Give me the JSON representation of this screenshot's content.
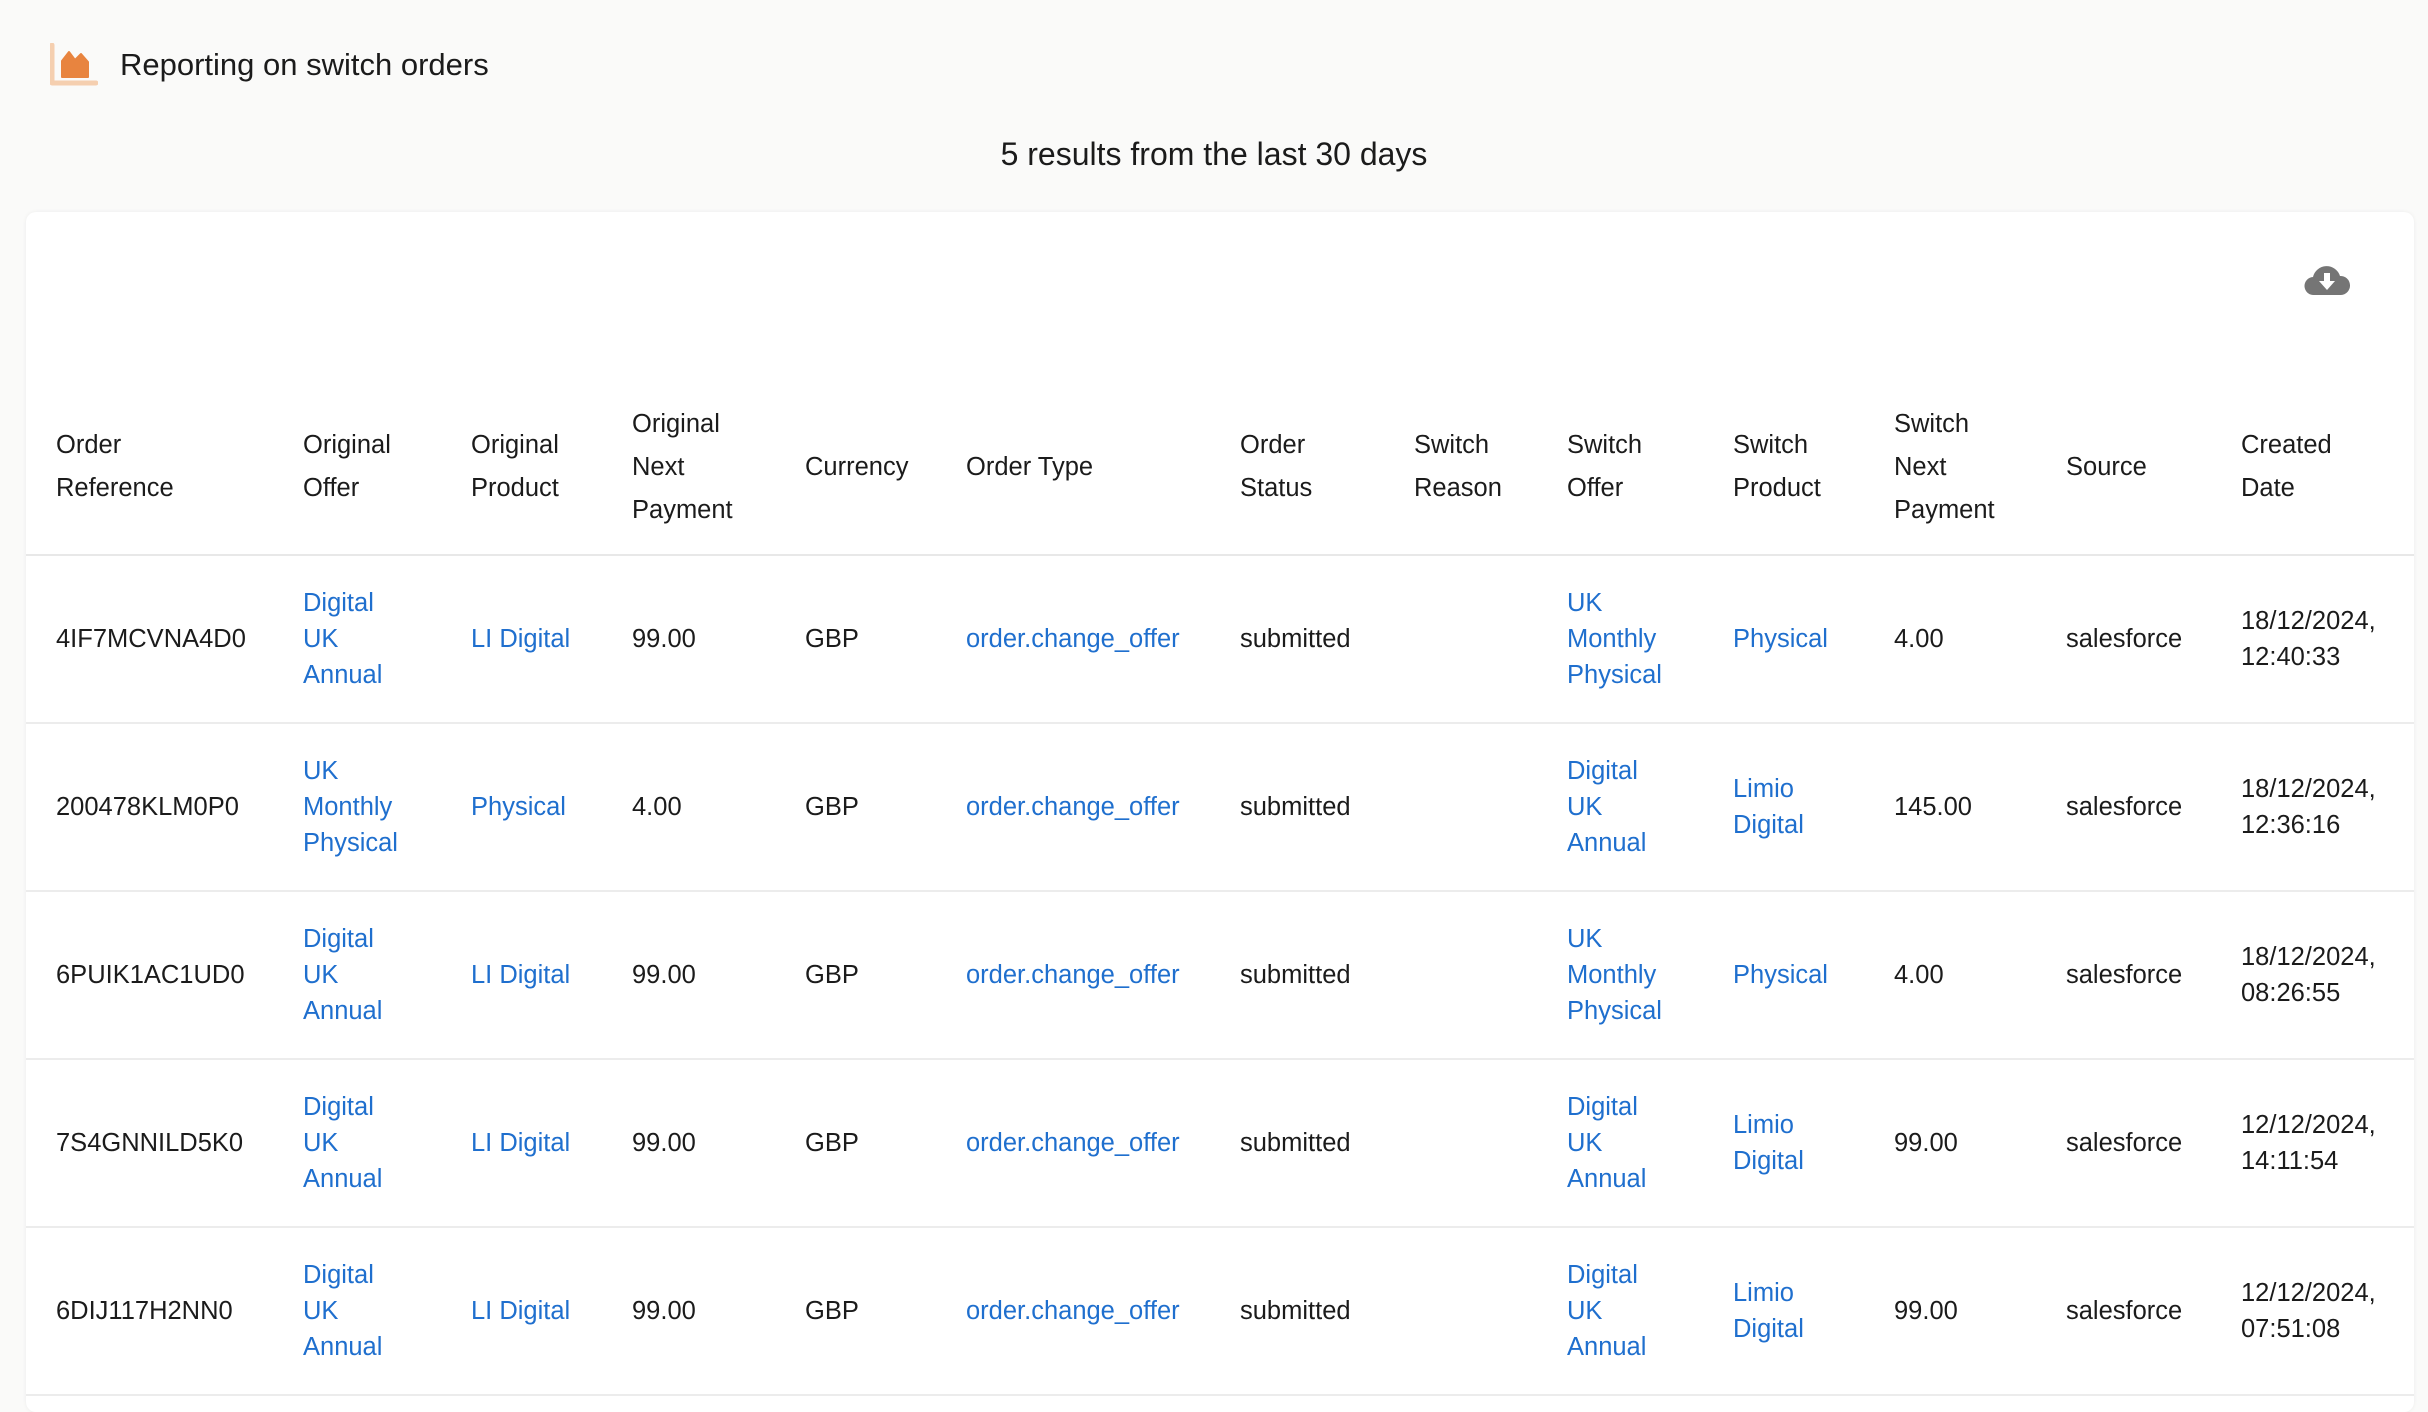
{
  "header": {
    "title": "Reporting on switch orders",
    "logo_icon": "area-chart-icon",
    "logo_color": "#e8843f"
  },
  "summary": "5 results from the last 30 days",
  "toolbar": {
    "download_icon": "cloud-download-icon"
  },
  "colors": {
    "link": "#1f6fce",
    "background": "#fafaf9"
  },
  "table": {
    "columns": [
      "Order Reference",
      "Original Offer",
      "Original Product",
      "Original Next Payment",
      "Currency",
      "Order Type",
      "Order Status",
      "Switch Reason",
      "Switch Offer",
      "Switch Product",
      "Switch Next Payment",
      "Source",
      "Created Date"
    ],
    "rows": [
      [
        "4IF7MCVNA4D0",
        "Digital UK Annual",
        "LI Digital",
        "99.00",
        "GBP",
        "order.change_offer",
        "submitted",
        "",
        "UK Monthly Physical",
        "Physical",
        "4.00",
        "salesforce",
        "18/12/2024, 12:40:33"
      ],
      [
        "200478KLM0P0",
        "UK Monthly Physical",
        "Physical",
        "4.00",
        "GBP",
        "order.change_offer",
        "submitted",
        "",
        "Digital UK Annual",
        "Limio Digital",
        "145.00",
        "salesforce",
        "18/12/2024, 12:36:16"
      ],
      [
        "6PUIK1AC1UD0",
        "Digital UK Annual",
        "LI Digital",
        "99.00",
        "GBP",
        "order.change_offer",
        "submitted",
        "",
        "UK Monthly Physical",
        "Physical",
        "4.00",
        "salesforce",
        "18/12/2024, 08:26:55"
      ],
      [
        "7S4GNNILD5K0",
        "Digital UK Annual",
        "LI Digital",
        "99.00",
        "GBP",
        "order.change_offer",
        "submitted",
        "",
        "Digital UK Annual",
        "Limio Digital",
        "99.00",
        "salesforce",
        "12/12/2024, 14:11:54"
      ],
      [
        "6DIJ117H2NN0",
        "Digital UK Annual",
        "LI Digital",
        "99.00",
        "GBP",
        "order.change_offer",
        "submitted",
        "",
        "Digital UK Annual",
        "Limio Digital",
        "99.00",
        "salesforce",
        "12/12/2024, 07:51:08"
      ]
    ]
  }
}
